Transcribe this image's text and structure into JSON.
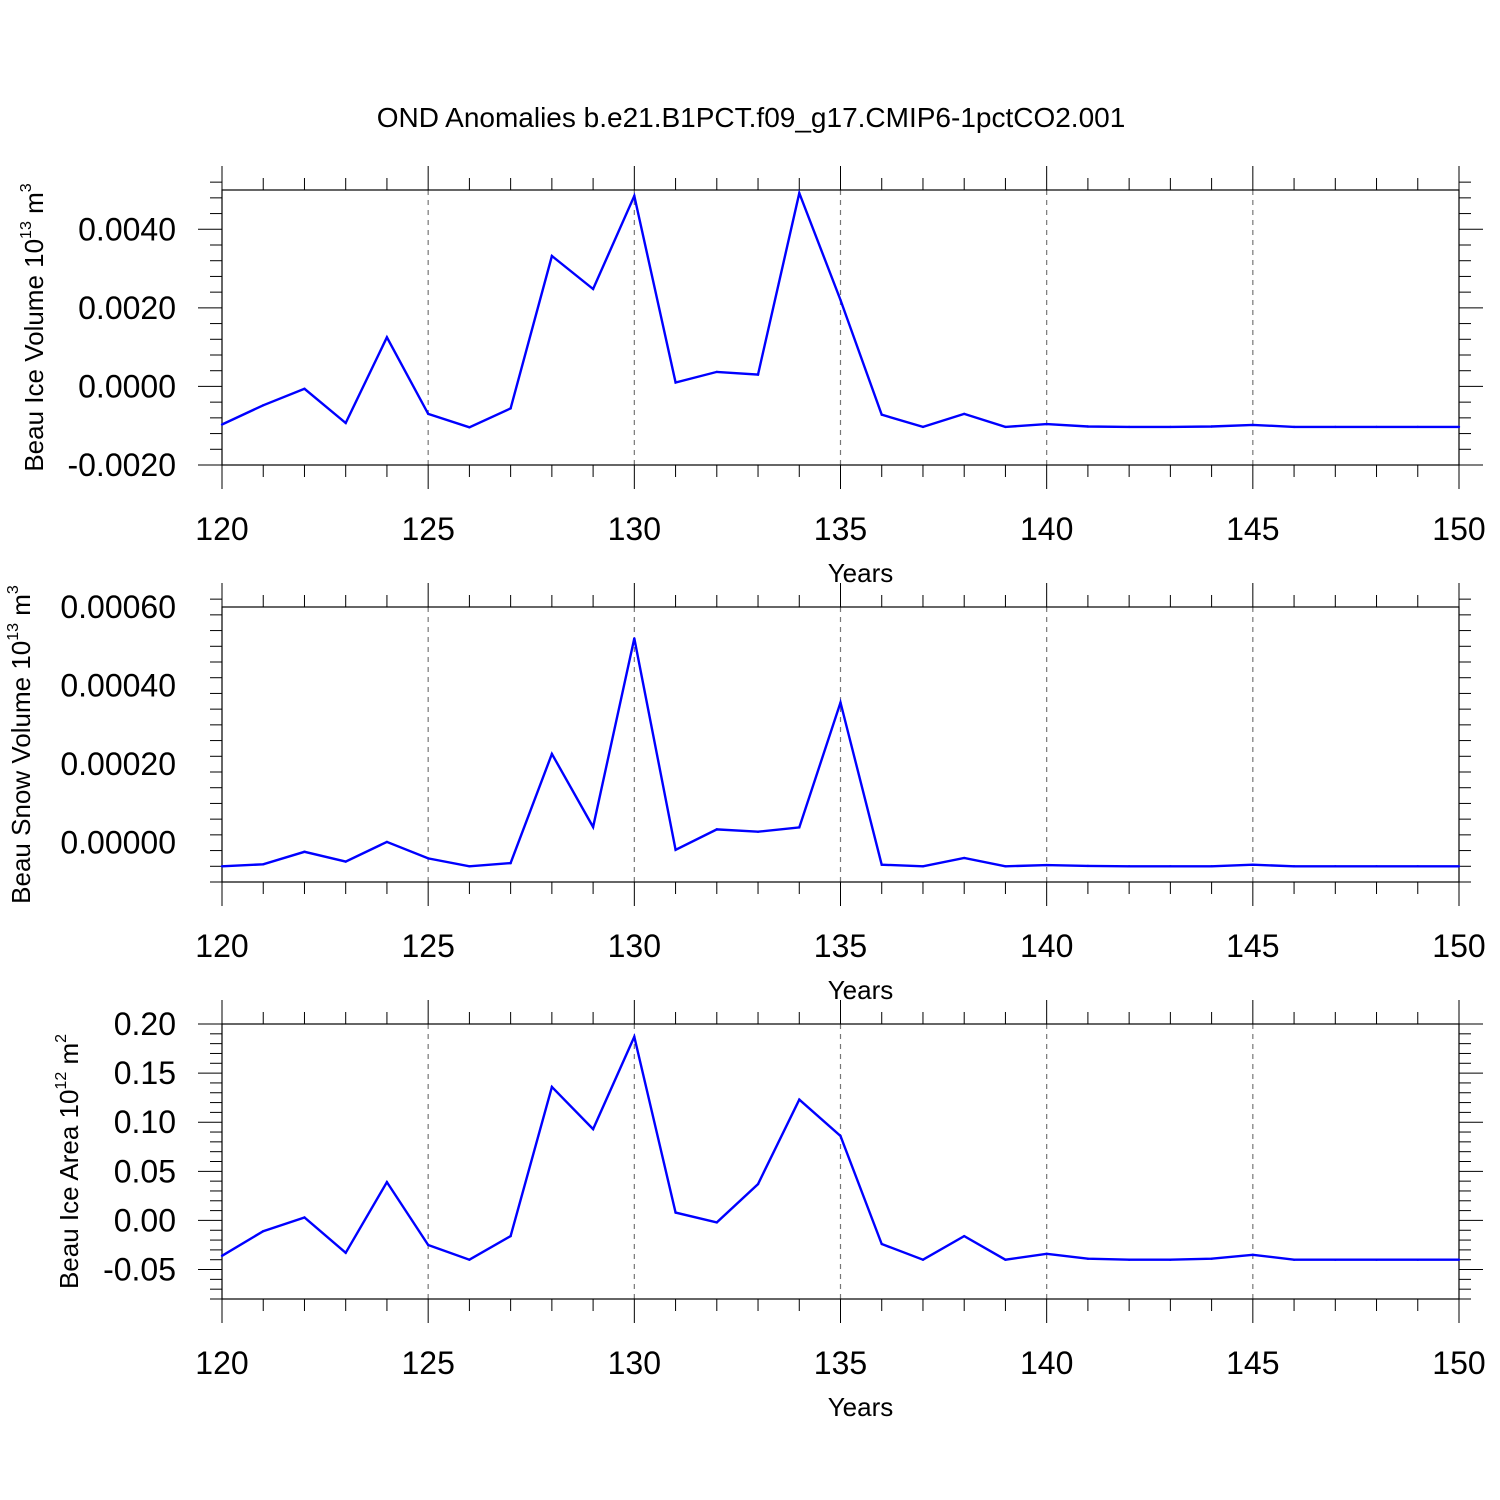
{
  "figure": {
    "title": "OND Anomalies b.e21.B1PCT.f09_g17.CMIP6-1pctCO2.001"
  },
  "colors": {
    "line": "#0000ff",
    "axis": "#000000",
    "grid": "#777777"
  },
  "chart_data": [
    {
      "type": "line",
      "ylabel": {
        "base": "Beau Ice Volume 10",
        "exp": "13",
        "unit": " m",
        "unit_exp": "3"
      },
      "xlabel": "Years",
      "xlim": [
        120,
        150
      ],
      "ylim": [
        -0.002,
        0.005
      ],
      "xticks": [
        120,
        125,
        130,
        135,
        140,
        145,
        150
      ],
      "xtick_labels": [
        "120",
        "125",
        "130",
        "135",
        "140",
        "145",
        "150"
      ],
      "yticks": [
        -0.002,
        0.0,
        0.002,
        0.004
      ],
      "ytick_labels": [
        "-0.0020",
        "0.0000",
        "0.0020",
        "0.0040"
      ],
      "yminor_step": 0.0004,
      "grid_x": [
        125,
        130,
        135,
        140,
        145
      ],
      "series": [
        {
          "name": "Beau Ice Volume",
          "x": [
            120,
            121,
            122,
            123,
            124,
            125,
            126,
            127,
            128,
            129,
            130,
            131,
            132,
            133,
            134,
            135,
            136,
            137,
            138,
            139,
            140,
            141,
            142,
            143,
            144,
            145,
            146,
            147,
            148,
            149,
            150
          ],
          "values": [
            -0.00097,
            -0.00048,
            -6e-05,
            -0.00093,
            0.00125,
            -0.0007,
            -0.00104,
            -0.00056,
            0.00332,
            0.00248,
            0.00485,
            0.0001,
            0.00037,
            0.0003,
            0.00492,
            0.0022,
            -0.00072,
            -0.00103,
            -0.0007,
            -0.00103,
            -0.00096,
            -0.00102,
            -0.00103,
            -0.00103,
            -0.00102,
            -0.00098,
            -0.00103,
            -0.00103,
            -0.00103,
            -0.00103,
            -0.00103
          ]
        }
      ]
    },
    {
      "type": "line",
      "ylabel": {
        "base": "Beau Snow Volume 10",
        "exp": "13",
        "unit": " m",
        "unit_exp": "3"
      },
      "xlabel": "Years",
      "xlim": [
        120,
        150
      ],
      "ylim": [
        -0.0001,
        0.0006
      ],
      "xticks": [
        120,
        125,
        130,
        135,
        140,
        145,
        150
      ],
      "xtick_labels": [
        "120",
        "125",
        "130",
        "135",
        "140",
        "145",
        "150"
      ],
      "yticks": [
        0.0,
        0.0002,
        0.0004,
        0.0006
      ],
      "ytick_labels": [
        "0.00000",
        "0.00020",
        "0.00040",
        "0.00060"
      ],
      "yminor_step": 4e-05,
      "grid_x": [
        125,
        130,
        135,
        140,
        145
      ],
      "series": [
        {
          "name": "Beau Snow Volume",
          "x": [
            120,
            121,
            122,
            123,
            124,
            125,
            126,
            127,
            128,
            129,
            130,
            131,
            132,
            133,
            134,
            135,
            136,
            137,
            138,
            139,
            140,
            141,
            142,
            143,
            144,
            145,
            146,
            147,
            148,
            149,
            150
          ],
          "values": [
            -6e-05,
            -5.5e-05,
            -2.3e-05,
            -4.8e-05,
            2e-06,
            -4e-05,
            -6e-05,
            -5.2e-05,
            0.000226,
            4e-05,
            0.00052,
            -1.8e-05,
            3.4e-05,
            2.8e-05,
            3.9e-05,
            0.000357,
            -5.6e-05,
            -6e-05,
            -3.9e-05,
            -6e-05,
            -5.7e-05,
            -5.9e-05,
            -6e-05,
            -6e-05,
            -6e-05,
            -5.6e-05,
            -6e-05,
            -6e-05,
            -6e-05,
            -6e-05,
            -6e-05
          ]
        }
      ]
    },
    {
      "type": "line",
      "ylabel": {
        "base": "Beau Ice Area 10",
        "exp": "12",
        "unit": " m",
        "unit_exp": "2"
      },
      "xlabel": "Years",
      "xlim": [
        120,
        150
      ],
      "ylim": [
        -0.08,
        0.2
      ],
      "xticks": [
        120,
        125,
        130,
        135,
        140,
        145,
        150
      ],
      "xtick_labels": [
        "120",
        "125",
        "130",
        "135",
        "140",
        "145",
        "150"
      ],
      "yticks": [
        -0.05,
        0.0,
        0.05,
        0.1,
        0.15,
        0.2
      ],
      "ytick_labels": [
        "-0.05",
        "0.00",
        "0.05",
        "0.10",
        "0.15",
        "0.20"
      ],
      "yminor_step": 0.01,
      "grid_x": [
        125,
        130,
        135,
        140,
        145
      ],
      "series": [
        {
          "name": "Beau Ice Area",
          "x": [
            120,
            121,
            122,
            123,
            124,
            125,
            126,
            127,
            128,
            129,
            130,
            131,
            132,
            133,
            134,
            135,
            136,
            137,
            138,
            139,
            140,
            141,
            142,
            143,
            144,
            145,
            146,
            147,
            148,
            149,
            150
          ],
          "values": [
            -0.036,
            -0.011,
            0.003,
            -0.033,
            0.039,
            -0.025,
            -0.04,
            -0.016,
            0.136,
            0.093,
            0.187,
            0.008,
            -0.002,
            0.037,
            0.123,
            0.086,
            -0.024,
            -0.04,
            -0.016,
            -0.04,
            -0.034,
            -0.039,
            -0.04,
            -0.04,
            -0.039,
            -0.035,
            -0.04,
            -0.04,
            -0.04,
            -0.04,
            -0.04
          ]
        }
      ]
    }
  ]
}
